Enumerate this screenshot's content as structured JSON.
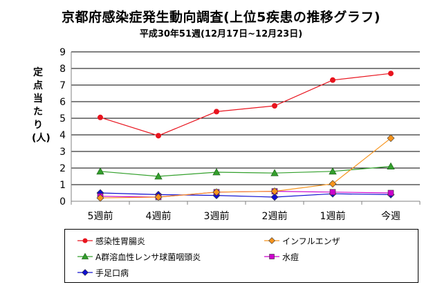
{
  "chart_data": {
    "type": "line",
    "title": "京都府感染症発生動向調査(上位5疾患の推移グラフ)",
    "subtitle": "平成30年51週(12月17日~12月23日)",
    "ylabel": "定点当たり(人)",
    "xlabel": "",
    "categories": [
      "5週前",
      "4週前",
      "3週前",
      "2週前",
      "1週前",
      "今週"
    ],
    "ylim": [
      0,
      9
    ],
    "yticks": [
      "0",
      "1",
      "2",
      "3",
      "4",
      "5",
      "6",
      "7",
      "8",
      "9"
    ],
    "grid": true,
    "legend_position": "bottom",
    "series": [
      {
        "name": "感染性胃腸炎",
        "color": "#e8141e",
        "marker": "circle",
        "values": [
          5.05,
          3.95,
          5.4,
          5.75,
          7.3,
          7.7
        ]
      },
      {
        "name": "インフルエンザ",
        "color": "#f7941d",
        "marker": "diamond",
        "values": [
          0.2,
          0.25,
          0.55,
          0.6,
          1.05,
          3.8
        ]
      },
      {
        "name": "A群溶血性レンサ球菌咽頭炎",
        "color": "#33a02c",
        "marker": "triangle",
        "values": [
          1.8,
          1.5,
          1.75,
          1.7,
          1.8,
          2.1
        ]
      },
      {
        "name": "水痘",
        "color": "#cc00cc",
        "marker": "square",
        "values": [
          0.3,
          0.25,
          0.55,
          0.6,
          0.55,
          0.5
        ]
      },
      {
        "name": "手足口病",
        "color": "#1010d0",
        "marker": "diamond",
        "values": [
          0.5,
          0.4,
          0.35,
          0.25,
          0.45,
          0.4
        ]
      }
    ]
  }
}
